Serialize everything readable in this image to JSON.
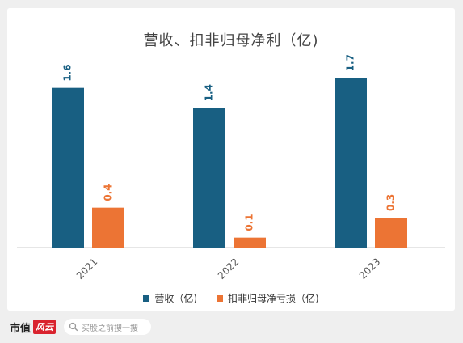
{
  "chart_data": {
    "type": "bar",
    "title": "营收、扣非归母净利（亿)",
    "categories": [
      "2021",
      "2022",
      "2023"
    ],
    "series": [
      {
        "name": "营收（亿)",
        "values": [
          1.6,
          1.4,
          1.7
        ],
        "labels": [
          "1.6",
          "1.4",
          "1.7"
        ],
        "color": "#185f82"
      },
      {
        "name": "扣非归母净亏损（亿)",
        "values": [
          0.4,
          0.1,
          0.3
        ],
        "labels": [
          "0.4",
          "0.1",
          "0.3"
        ],
        "color": "#ec7434"
      }
    ],
    "ylim": [
      0,
      1.8
    ],
    "grid": false,
    "legend_position": "bottom"
  },
  "footer": {
    "brand": "市值",
    "brand_badge": "风云",
    "search_placeholder": "买股之前搜一搜",
    "search_icon": "search-icon"
  }
}
